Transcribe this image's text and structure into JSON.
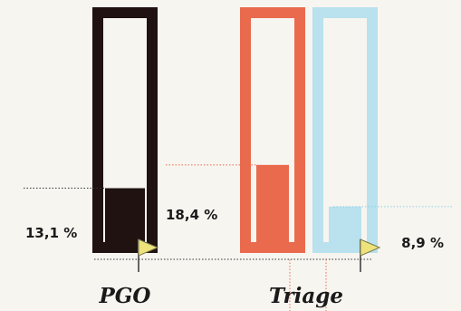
{
  "chart_data": {
    "type": "bar",
    "ylim": [
      0,
      100
    ],
    "grid": false,
    "series": [
      {
        "category": "PGO",
        "value": 13.1,
        "label": "13,1 %",
        "color": "#1f1210",
        "target_marker": true
      },
      {
        "category": "Triage",
        "value": 18.4,
        "label": "18,4 %",
        "color": "#ea6a4e",
        "target_marker": false
      },
      {
        "category": "Triage",
        "value": 8.9,
        "label": "8,9 %",
        "color": "#b9e1ee",
        "target_marker": true
      }
    ],
    "categories": [
      "PGO",
      "Triage"
    ],
    "icons": {
      "target_marker": "flag-icon"
    },
    "colors": {
      "background": "#f7f5f0",
      "flag": "#eee37b",
      "flag_pole": "#666666"
    }
  }
}
